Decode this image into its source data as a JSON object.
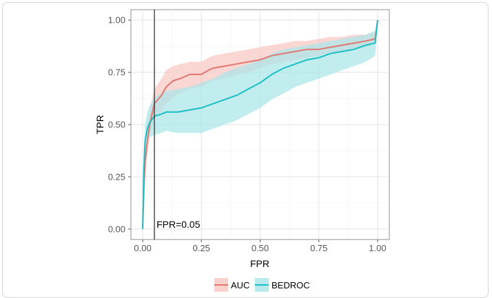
{
  "chart_data": {
    "type": "line",
    "xlabel": "FPR",
    "ylabel": "TPR",
    "xlim": [
      -0.05,
      1.05
    ],
    "ylim": [
      -0.05,
      1.05
    ],
    "x_ticks": [
      "0.00",
      "0.25",
      "0.50",
      "0.75",
      "1.00"
    ],
    "y_ticks": [
      "0.00",
      "0.25",
      "0.50",
      "0.75",
      "1.00"
    ],
    "grid": true,
    "legend_position": "bottom",
    "vline": {
      "x": 0.05,
      "label": "FPR=0.05"
    },
    "series": [
      {
        "name": "AUC",
        "color": "#e0766e",
        "band_color": "#f8c6c1",
        "x": [
          0.0,
          0.005,
          0.01,
          0.02,
          0.03,
          0.05,
          0.08,
          0.1,
          0.13,
          0.16,
          0.2,
          0.25,
          0.28,
          0.3,
          0.35,
          0.4,
          0.45,
          0.5,
          0.55,
          0.6,
          0.65,
          0.7,
          0.75,
          0.8,
          0.85,
          0.9,
          0.95,
          0.99,
          1.0
        ],
        "y": [
          0.0,
          0.18,
          0.32,
          0.42,
          0.5,
          0.6,
          0.64,
          0.68,
          0.71,
          0.72,
          0.74,
          0.74,
          0.76,
          0.77,
          0.78,
          0.79,
          0.8,
          0.81,
          0.83,
          0.84,
          0.85,
          0.86,
          0.86,
          0.87,
          0.88,
          0.89,
          0.9,
          0.91,
          1.0
        ],
        "lower": [
          0.0,
          0.12,
          0.25,
          0.36,
          0.44,
          0.53,
          0.56,
          0.6,
          0.63,
          0.65,
          0.67,
          0.68,
          0.7,
          0.71,
          0.72,
          0.74,
          0.75,
          0.77,
          0.79,
          0.8,
          0.81,
          0.82,
          0.83,
          0.84,
          0.85,
          0.86,
          0.87,
          0.89,
          1.0
        ],
        "upper": [
          0.0,
          0.24,
          0.39,
          0.49,
          0.57,
          0.67,
          0.72,
          0.76,
          0.78,
          0.79,
          0.8,
          0.8,
          0.82,
          0.83,
          0.84,
          0.85,
          0.86,
          0.87,
          0.88,
          0.89,
          0.9,
          0.9,
          0.91,
          0.92,
          0.92,
          0.93,
          0.93,
          0.94,
          1.0
        ]
      },
      {
        "name": "BEDROC",
        "color": "#19bfc4",
        "band_color": "#a8e6e8",
        "x": [
          0.0,
          0.005,
          0.01,
          0.02,
          0.03,
          0.05,
          0.08,
          0.1,
          0.15,
          0.2,
          0.25,
          0.3,
          0.35,
          0.4,
          0.45,
          0.5,
          0.55,
          0.6,
          0.65,
          0.7,
          0.75,
          0.8,
          0.85,
          0.9,
          0.95,
          0.99,
          1.0
        ],
        "y": [
          0.0,
          0.28,
          0.42,
          0.48,
          0.51,
          0.54,
          0.55,
          0.56,
          0.56,
          0.57,
          0.58,
          0.6,
          0.62,
          0.64,
          0.67,
          0.7,
          0.74,
          0.77,
          0.79,
          0.81,
          0.82,
          0.84,
          0.85,
          0.86,
          0.88,
          0.89,
          1.0
        ],
        "lower": [
          0.0,
          0.2,
          0.34,
          0.41,
          0.44,
          0.45,
          0.46,
          0.47,
          0.46,
          0.46,
          0.46,
          0.48,
          0.5,
          0.52,
          0.55,
          0.58,
          0.62,
          0.65,
          0.68,
          0.7,
          0.72,
          0.74,
          0.76,
          0.78,
          0.8,
          0.83,
          1.0
        ],
        "upper": [
          0.0,
          0.36,
          0.5,
          0.56,
          0.59,
          0.63,
          0.65,
          0.66,
          0.67,
          0.68,
          0.7,
          0.72,
          0.75,
          0.77,
          0.79,
          0.81,
          0.84,
          0.86,
          0.87,
          0.88,
          0.89,
          0.9,
          0.91,
          0.92,
          0.93,
          0.95,
          1.0
        ]
      }
    ]
  }
}
